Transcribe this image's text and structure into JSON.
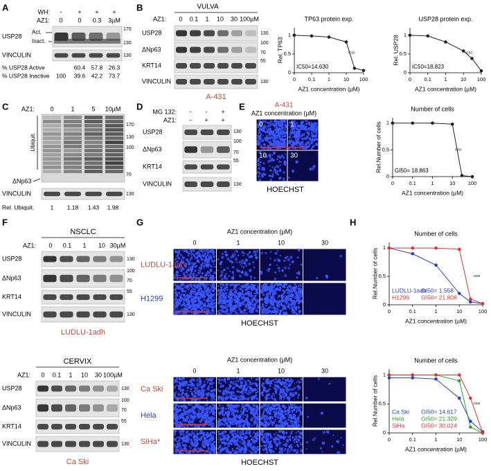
{
  "panel_labels": [
    "A",
    "B",
    "C",
    "D",
    "E",
    "F",
    "G",
    "H"
  ],
  "A": {
    "wh_label": "WH:",
    "wh": [
      "-",
      "+",
      "+",
      "+"
    ],
    "az1_label": "AZ1:",
    "az1": [
      "0",
      "0",
      "0.3",
      "3µM"
    ],
    "usp28": "USP28",
    "act": "Act.",
    "inact": "Inact.",
    "vinculin": "VINCULIN",
    "mw": [
      "170",
      "130",
      "130"
    ],
    "table": {
      "rows": [
        {
          "label": "% USP28 Active",
          "values": [
            60.4,
            57.8,
            26.3
          ]
        },
        {
          "label": "% USP28 Inactive",
          "values": [
            100,
            39.6,
            42.2,
            73.7
          ]
        }
      ]
    }
  },
  "B": {
    "tissue": "VULVA",
    "az1_label": "AZ1:",
    "az1": [
      "0",
      "0.1",
      "1",
      "10",
      "30",
      "100µM"
    ],
    "proteins": [
      "USP28",
      "ΔNp63",
      "KRT14",
      "VINCULIN"
    ],
    "mw": [
      "130",
      "100",
      "70",
      "55",
      "130"
    ],
    "cell_line": "A-431"
  },
  "C": {
    "az1_label": "AZ1:",
    "az1": [
      "0",
      "1",
      "5",
      "10µM"
    ],
    "ubiquit": "Ubiquit.",
    "dnp63": "ΔNp63",
    "vinculin": "VINCULIN",
    "mw": [
      "170",
      "130",
      "100",
      "70",
      "130"
    ],
    "rel_label": "Rel. Ubiquit.",
    "rel": [
      1,
      1.18,
      1.43,
      1.98
    ]
  },
  "D": {
    "mg132_label": "MG 132:",
    "mg132": [
      "-",
      "-",
      "+"
    ],
    "az1_label": "AZ1:",
    "az1": [
      "-",
      "+",
      "+"
    ],
    "proteins": [
      "USP28",
      "ΔNp63",
      "KRT14",
      "VINCULIN"
    ],
    "mw": [
      "130",
      "100",
      "70",
      "55",
      "130"
    ]
  },
  "E": {
    "cell_line": "A-431",
    "az1_title": "AZ1 concentration (µM)",
    "tiles": [
      "0",
      "1",
      "10",
      "30"
    ],
    "stain": "HOECHST"
  },
  "F": {
    "nsclc": {
      "tissue": "NSCLC",
      "az1_label": "AZ1:",
      "az1": [
        "0",
        "0.1",
        "1",
        "10",
        "30µM"
      ],
      "proteins": [
        "USP28",
        "ΔNp63",
        "KRT14",
        "VINCULIN"
      ],
      "mw": [
        "130",
        "100",
        "70",
        "55",
        "130"
      ],
      "cell_line": "LUDLU-1adh"
    },
    "cervix": {
      "tissue": "CERVIX",
      "az1_label": "AZ1:",
      "az1": [
        "0",
        "0.1",
        "1",
        "10",
        "30",
        "100µM"
      ],
      "proteins": [
        "USP28",
        "ΔNp63",
        "KRT14",
        "VINCULIN"
      ],
      "mw": [
        "130",
        "100",
        "70",
        "55",
        "130"
      ],
      "cell_line": "Ca Ski"
    }
  },
  "G": {
    "top": {
      "az1_title": "AZ1 concentration (µM)",
      "az1": [
        "0",
        "1",
        "10",
        "30"
      ],
      "cell_lines": [
        "LUDLU-1adh",
        "H1299"
      ],
      "stain": "HOECHST"
    },
    "bottom": {
      "az1_title": "AZ1 concentration (µM)",
      "az1": [
        "0",
        "1",
        "10",
        "30"
      ],
      "cell_lines": [
        "Ca Ski",
        "Hela",
        "SiHa*"
      ],
      "stain": "HOECHST"
    }
  },
  "chart_data": [
    {
      "type": "line",
      "title": "TP63 protein exp.",
      "x_label": "AZ1 concentration (µM)",
      "y_label": "Rel. TP63",
      "xscale": "log",
      "x": [
        0,
        0.1,
        1,
        10,
        30,
        100
      ],
      "values": [
        1.0,
        0.98,
        0.95,
        0.82,
        0.12,
        0.06
      ],
      "color": "#222222",
      "xlim": [
        0,
        100
      ],
      "xticks": [
        0,
        0.1,
        1,
        10,
        100
      ],
      "ylim": [
        0,
        1.2
      ],
      "yticks": [
        0,
        0.5,
        1
      ],
      "annotations": [
        "IC50=14.630",
        "IC50"
      ]
    },
    {
      "type": "line",
      "title": "USP28 protein exp.",
      "x_label": "AZ1 concentration (µM)",
      "y_label": "Rel. USP28",
      "xscale": "log",
      "x": [
        0,
        0.1,
        1,
        10,
        30,
        100
      ],
      "values": [
        1.0,
        0.98,
        0.82,
        0.58,
        0.38,
        0.05
      ],
      "color": "#222222",
      "xlim": [
        0,
        100
      ],
      "xticks": [
        0,
        0.1,
        1,
        10,
        100
      ],
      "ylim": [
        0,
        1.2
      ],
      "yticks": [
        0,
        0.5,
        1
      ],
      "annotations": [
        "IC50=18.823",
        "IC50"
      ]
    },
    {
      "type": "line",
      "title": "Number of cells",
      "x_label": "AZ1 concentration (µM)",
      "y_label": "Rel.Number of cells",
      "xscale": "log",
      "x": [
        0,
        0.1,
        1,
        10,
        30,
        100
      ],
      "values": [
        1,
        1,
        1,
        0.98,
        0.02,
        0
      ],
      "color": "#222222",
      "xlim": [
        0,
        100
      ],
      "xticks": [
        0,
        0.1,
        1,
        10,
        100
      ],
      "ylim": [
        0,
        1.1
      ],
      "yticks": [
        0,
        0.5,
        1
      ],
      "annotations": [
        "GI50= 18.863",
        "GI50"
      ]
    },
    {
      "type": "line",
      "title": "Number of cells",
      "x_label": "AZ1 concentration (µM)",
      "y_label": "Rel.Number of cells",
      "xscale": "log",
      "x": [
        0,
        0.1,
        1,
        10,
        30,
        100
      ],
      "xlim": [
        0,
        100
      ],
      "xticks": [
        0,
        0.1,
        1,
        10,
        100
      ],
      "ylim": [
        0,
        1.1
      ],
      "yticks": [
        0,
        0.5,
        1
      ],
      "annotations": [
        "GI50"
      ],
      "series": [
        {
          "name": "LUDLU-1adh",
          "color": "#2a3fbf",
          "values": [
            1,
            0.9,
            0.7,
            0.2,
            0.05,
            0.02
          ],
          "label": "GI50= 1.558"
        },
        {
          "name": "H1299",
          "color": "#e03030",
          "values": [
            1,
            1,
            1,
            0.98,
            0.1,
            0.02
          ],
          "label": "GI50= 21.808"
        }
      ]
    },
    {
      "type": "line",
      "title": "Number of cells",
      "x_label": "AZ1 concentration (µM)",
      "y_label": "Rel.Number of cells",
      "xscale": "log",
      "x": [
        0,
        0.1,
        1,
        10,
        30,
        100
      ],
      "xlim": [
        0,
        100
      ],
      "xticks": [
        0,
        0.1,
        1,
        10,
        100
      ],
      "ylim": [
        0,
        1.1
      ],
      "yticks": [
        0,
        0.5,
        1
      ],
      "annotations": [
        "GI50"
      ],
      "series": [
        {
          "name": "Ca Ski",
          "color": "#2a3fbf",
          "values": [
            0.95,
            0.95,
            0.93,
            0.6,
            0.2,
            0.02
          ],
          "label": "GI50= 14.617"
        },
        {
          "name": "Hela",
          "color": "#2ca02c",
          "values": [
            1,
            1,
            1,
            0.9,
            0.1,
            0
          ],
          "label": "GI50= 21.329"
        },
        {
          "name": "SiHa",
          "color": "#e03030",
          "values": [
            1,
            1,
            1,
            1,
            0.6,
            0
          ],
          "label": "GI50= 30.024"
        }
      ]
    }
  ]
}
